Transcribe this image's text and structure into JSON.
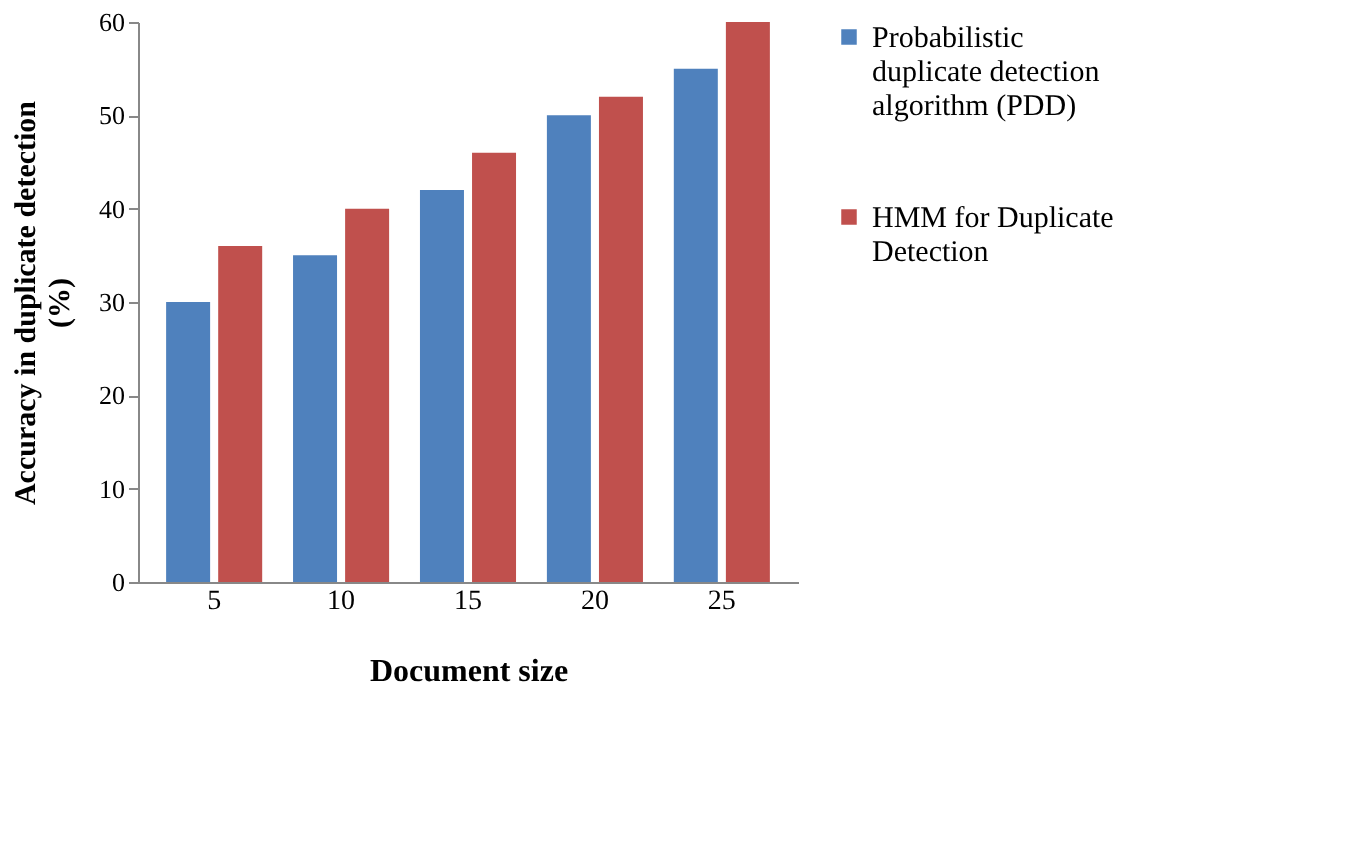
{
  "chart_data": {
    "type": "bar",
    "xlabel": "Document size",
    "ylabel": "Accuracy in duplicate detection (%)",
    "categories": [
      "5",
      "10",
      "15",
      "20",
      "25"
    ],
    "series": [
      {
        "name": "Probabilistic duplicate detection algorithm (PDD)",
        "color": "#4f81bd",
        "values": [
          30,
          35,
          42,
          50,
          55
        ]
      },
      {
        "name": "HMM for Duplicate Detection",
        "color": "#c0504d",
        "values": [
          36,
          40,
          46,
          52,
          60
        ]
      }
    ],
    "ylim": [
      0,
      60
    ],
    "yticks": [
      0,
      10,
      20,
      30,
      40,
      50,
      60
    ],
    "grid": false,
    "legend": "right"
  }
}
